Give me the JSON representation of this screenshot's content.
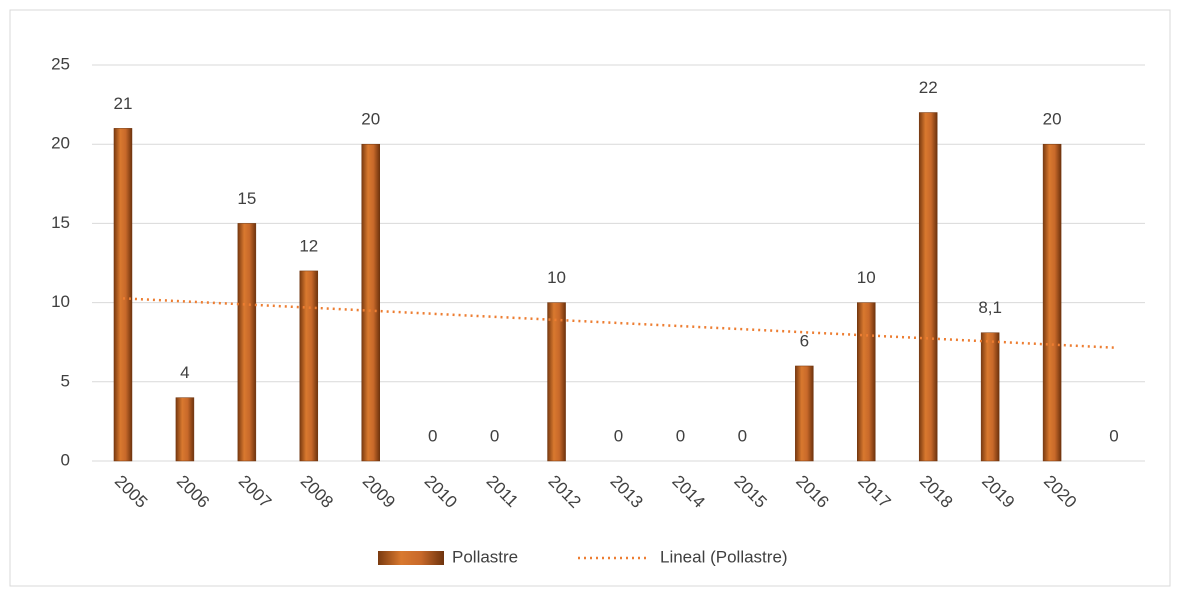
{
  "chart_data": {
    "type": "bar",
    "categories": [
      "2005",
      "2006",
      "2007",
      "2008",
      "2009",
      "2010",
      "2011",
      "2012",
      "2013",
      "2014",
      "2015",
      "2016",
      "2017",
      "2018",
      "2019",
      "2020",
      null
    ],
    "series": [
      {
        "name": "Pollastre",
        "color": "#c0601f",
        "values": [
          21,
          4,
          15,
          12,
          20,
          0,
          0,
          10,
          0,
          0,
          0,
          6,
          10,
          22,
          8.1,
          20,
          0
        ],
        "value_labels": [
          "21",
          "4",
          "15",
          "12",
          "20",
          "0",
          "0",
          "10",
          "0",
          "0",
          "0",
          "6",
          "10",
          "22",
          "8,1",
          "20",
          "0"
        ]
      }
    ],
    "trendline": {
      "name": "Lineal (Pollastre)",
      "kind": "linear",
      "color": "#ed7d31"
    },
    "ylim": [
      0,
      25
    ],
    "yticks": [
      0,
      5,
      10,
      15,
      20,
      25
    ],
    "grid": true,
    "legend": "bottom"
  }
}
